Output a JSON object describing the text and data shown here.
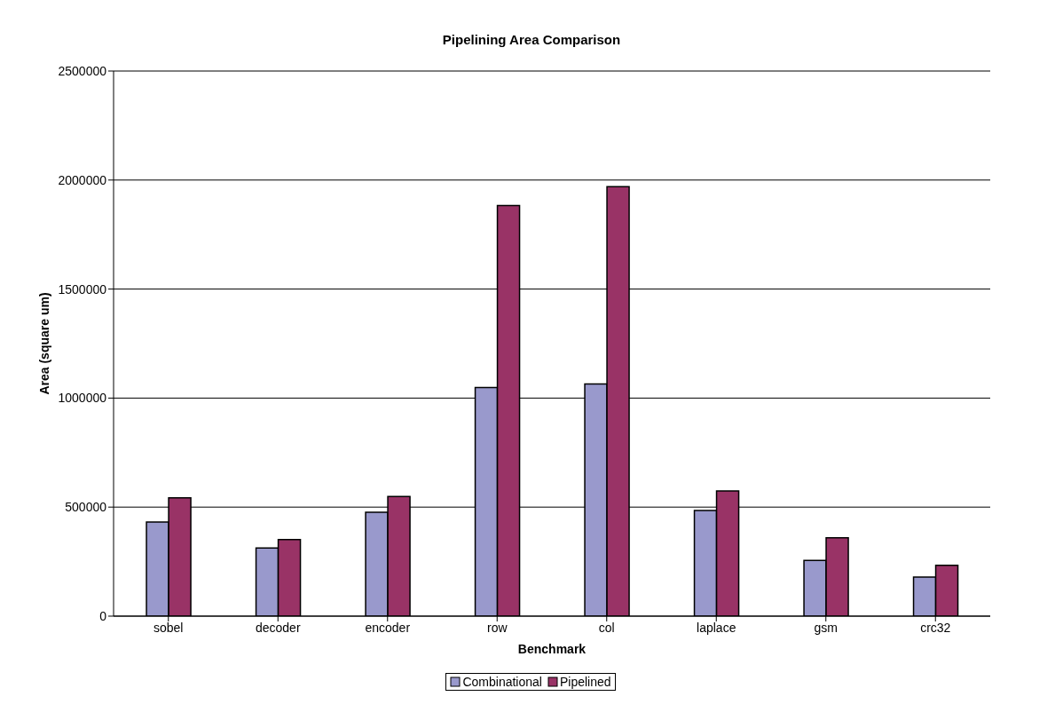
{
  "chart_data": {
    "type": "bar",
    "title": "Pipelining Area Comparison",
    "xlabel": "Benchmark",
    "ylabel": "Area (square um)",
    "categories": [
      "sobel",
      "decoder",
      "encoder",
      "row",
      "col",
      "laplace",
      "gsm",
      "crc32"
    ],
    "series": [
      {
        "name": "Combinational",
        "color": "#9999cc",
        "values": [
          432000,
          313000,
          476000,
          1048000,
          1065000,
          485000,
          256000,
          179000
        ]
      },
      {
        "name": "Pipelined",
        "color": "#993366",
        "values": [
          543000,
          351000,
          549000,
          1883000,
          1970000,
          574000,
          359000,
          233000
        ]
      }
    ],
    "ylim": [
      0,
      2500000
    ],
    "yticks": [
      0,
      500000,
      1000000,
      1500000,
      2000000,
      2500000
    ],
    "grid": "y",
    "legend": "bottom"
  }
}
